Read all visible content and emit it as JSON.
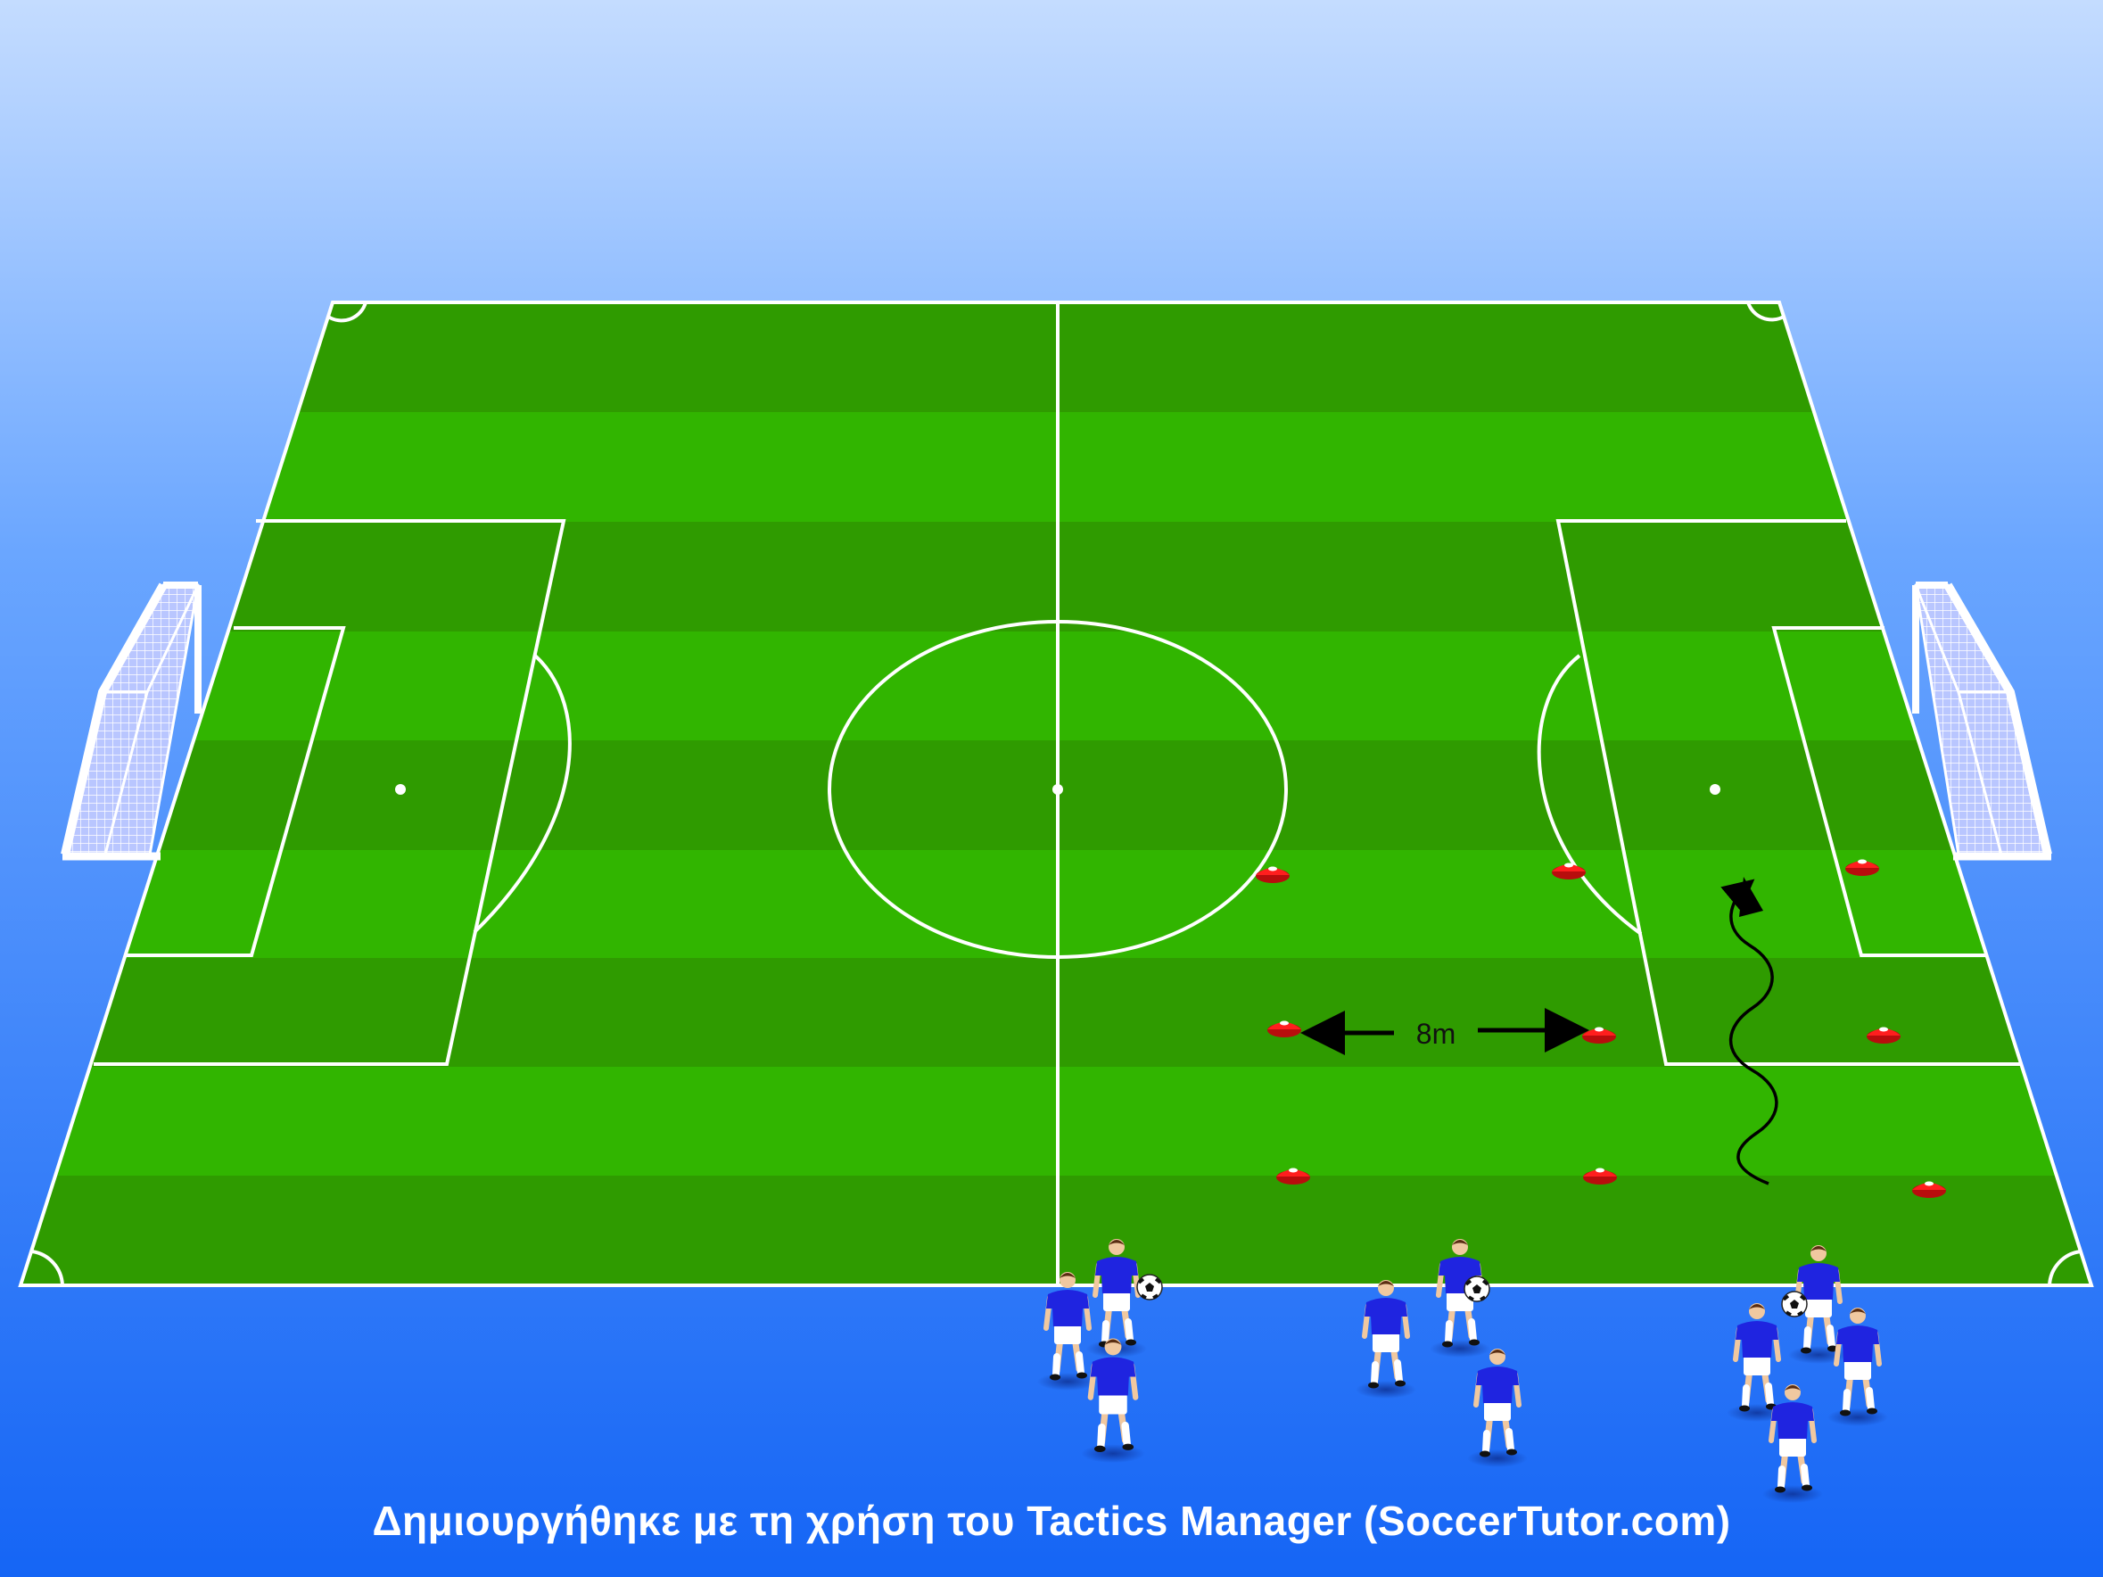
{
  "diagram": {
    "distance_label": "8m",
    "credit": "Δημιουργήθηκε με τη χρήση του Tactics Manager (SoccerTutor.com)"
  },
  "colors": {
    "sky_top": "#c4dcff",
    "sky_bottom": "#1f6ef6",
    "grass_light": "#31b500",
    "grass_dark": "#2f9b00",
    "line": "#ffffff",
    "cone": "#ff1e1e",
    "shirt": "#1f24e0",
    "shorts": "#ffffff"
  },
  "icons": {
    "goal": "goal-net-icon",
    "cone": "cone-icon",
    "player": "player-icon",
    "ball": "ball-icon",
    "arrow": "arrow-icon"
  }
}
